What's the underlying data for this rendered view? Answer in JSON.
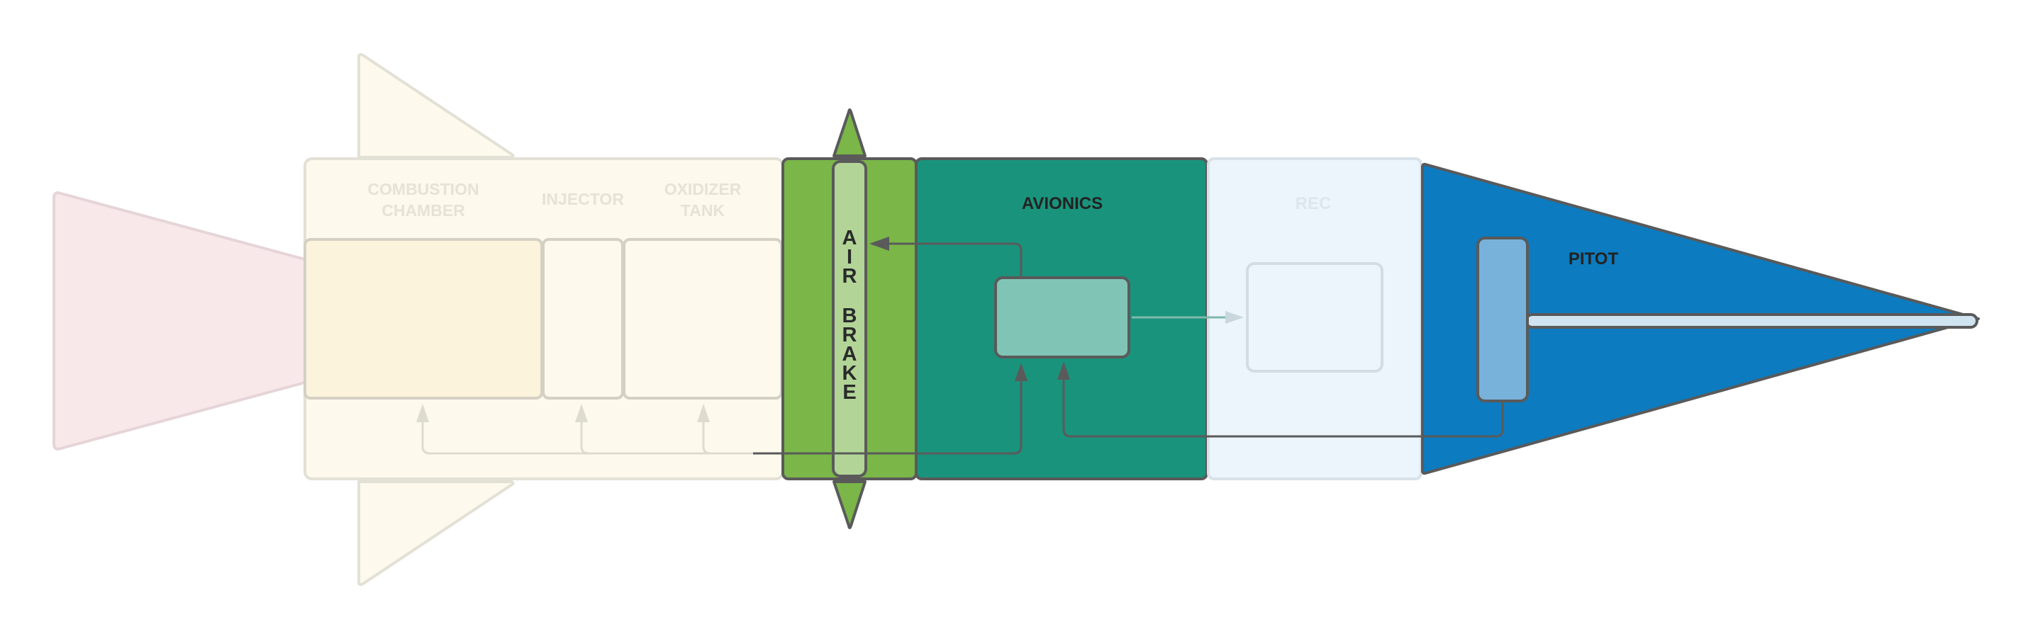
{
  "components": {
    "combustion_chamber": {
      "label_line1": "COMBUSTION",
      "label_line2": "CHAMBER"
    },
    "injector": {
      "label": "INJECTOR"
    },
    "oxidizer_tank": {
      "label_line1": "OXIDIZER",
      "label_line2": "TANK"
    },
    "air_brake": {
      "letters": [
        "A",
        "I",
        "R",
        "B",
        "R",
        "A",
        "K",
        "E"
      ]
    },
    "avionics": {
      "label": "AVIONICS"
    },
    "rec": {
      "label": "REC"
    },
    "pitot": {
      "label": "PITOT"
    }
  },
  "colors": {
    "nozzle_fill": "#f8e8ea",
    "motor_fill": "#fdf9ec",
    "motor_inner_fill": "#fcf3dc",
    "airbrake_fill": "#7ab648",
    "airbrake_inner_fill": "#b2d597",
    "avionics_fill": "#1a937c",
    "avionics_box_fill": "#80c4b5",
    "rec_fill": "#ebf5fb",
    "nose_fill": "#0c7bbf",
    "pitot_fill": "#78b2db",
    "probe_fill": "#cfe3f1",
    "stroke": "#5a5a5a",
    "faded_stroke": "#dedbd0"
  }
}
